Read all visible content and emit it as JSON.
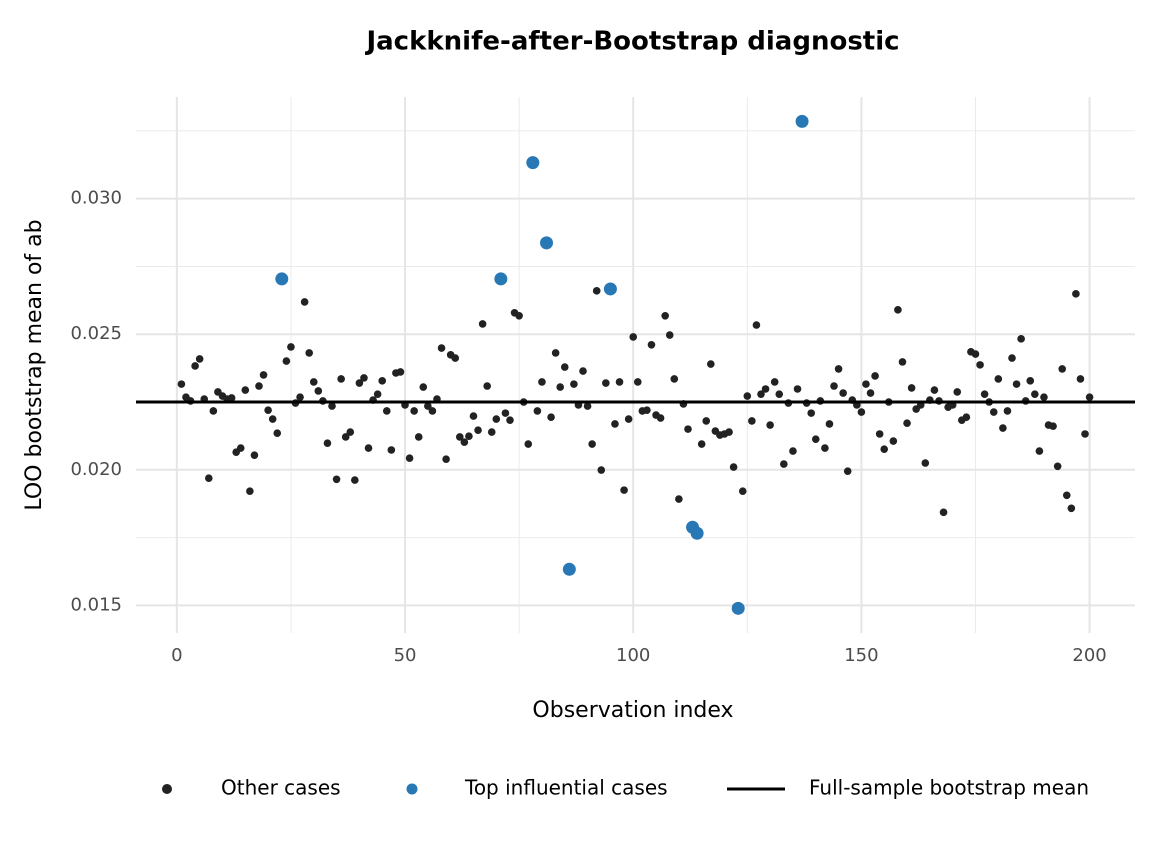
{
  "chart_data": {
    "type": "scatter",
    "title": "Jackknife-after-Bootstrap diagnostic",
    "x_label": "Observation index",
    "y_label": "LOO bootstrap mean of ab",
    "xlim": [
      -8.95,
      209.95
    ],
    "ylim": [
      0.01398,
      0.03375
    ],
    "xticks": [
      0,
      50,
      100,
      150,
      200
    ],
    "yticks": [
      0.015,
      {
        "value": 0.02,
        "label": "0.020"
      },
      0.025,
      {
        "value": 0.03,
        "label": "0.030"
      }
    ],
    "x_minor_ticks": [
      25,
      75,
      125,
      175
    ],
    "y_minor_ticks": [
      0.0175,
      0.0225,
      0.0275,
      0.0325
    ],
    "grid": true,
    "legend": "bottom",
    "series": [
      {
        "name": "Other cases",
        "color": "#222222",
        "x": [
          1,
          2,
          3,
          4,
          5,
          6,
          7,
          8,
          9,
          10,
          11,
          12,
          13,
          14,
          15,
          16,
          17,
          18,
          19,
          20,
          21,
          22,
          24,
          25,
          26,
          27,
          28,
          29,
          30,
          31,
          32,
          33,
          34,
          35,
          36,
          37,
          38,
          39,
          40,
          41,
          42,
          43,
          44,
          45,
          46,
          47,
          48,
          49,
          50,
          51,
          52,
          53,
          54,
          55,
          56,
          57,
          58,
          59,
          60,
          61,
          62,
          63,
          64,
          65,
          66,
          67,
          68,
          69,
          70,
          72,
          73,
          74,
          75,
          76,
          77,
          79,
          80,
          82,
          83,
          84,
          85,
          87,
          88,
          89,
          90,
          91,
          92,
          93,
          94,
          96,
          97,
          98,
          99,
          100,
          101,
          102,
          103,
          104,
          105,
          106,
          107,
          108,
          109,
          110,
          111,
          112,
          115,
          116,
          117,
          118,
          119,
          120,
          121,
          122,
          124,
          125,
          126,
          127,
          128,
          129,
          130,
          131,
          132,
          133,
          134,
          135,
          136,
          138,
          139,
          140,
          141,
          142,
          143,
          144,
          145,
          146,
          147,
          148,
          149,
          150,
          151,
          152,
          153,
          154,
          155,
          156,
          157,
          158,
          159,
          160,
          161,
          162,
          163,
          164,
          165,
          166,
          167,
          168,
          169,
          170,
          171,
          172,
          173,
          174,
          175,
          176,
          177,
          178,
          179,
          180,
          181,
          182,
          183,
          184,
          185,
          186,
          187,
          188,
          189,
          190,
          191,
          192,
          193,
          194,
          195,
          196,
          197,
          198,
          199,
          200
        ],
        "values": [
          0.02316,
          0.02268,
          0.02254,
          0.02383,
          0.02409,
          0.02261,
          0.01969,
          0.02217,
          0.02287,
          0.02272,
          0.02261,
          0.02265,
          0.02065,
          0.0208,
          0.02294,
          0.01921,
          0.02054,
          0.02309,
          0.0235,
          0.0222,
          0.02187,
          0.02135,
          0.02401,
          0.02453,
          0.02246,
          0.02268,
          0.02619,
          0.02431,
          0.02324,
          0.02291,
          0.02254,
          0.02098,
          0.02235,
          0.01965,
          0.02335,
          0.02121,
          0.02139,
          0.01962,
          0.0232,
          0.02339,
          0.0208,
          0.02257,
          0.02279,
          0.02328,
          0.02217,
          0.02073,
          0.02357,
          0.02361,
          0.02239,
          0.02043,
          0.02217,
          0.02121,
          0.02305,
          0.02235,
          0.02217,
          0.02261,
          0.02449,
          0.02039,
          0.02424,
          0.02412,
          0.02121,
          0.02102,
          0.02124,
          0.02198,
          0.02146,
          0.02538,
          0.02309,
          0.02139,
          0.02187,
          0.02209,
          0.02183,
          0.02579,
          0.02568,
          0.0225,
          0.02095,
          0.02217,
          0.02324,
          0.02194,
          0.02431,
          0.02305,
          0.02379,
          0.02316,
          0.02239,
          0.02364,
          0.02235,
          0.02095,
          0.0266,
          0.01999,
          0.0232,
          0.02169,
          0.02324,
          0.01925,
          0.02187,
          0.0249,
          0.02324,
          0.02217,
          0.0222,
          0.02461,
          0.02202,
          0.02191,
          0.02568,
          0.02497,
          0.02335,
          0.01892,
          0.02243,
          0.0215,
          0.02095,
          0.0218,
          0.0239,
          0.02143,
          0.02128,
          0.02132,
          0.02139,
          0.0201,
          0.01921,
          0.02272,
          0.0218,
          0.02534,
          0.02279,
          0.02298,
          0.02165,
          0.02324,
          0.02279,
          0.02021,
          0.02246,
          0.02069,
          0.02298,
          0.02246,
          0.02209,
          0.02113,
          0.02254,
          0.0208,
          0.02169,
          0.02309,
          0.02372,
          0.02283,
          0.01995,
          0.02257,
          0.02239,
          0.02213,
          0.02316,
          0.02283,
          0.02346,
          0.02132,
          0.02076,
          0.0225,
          0.02106,
          0.0259,
          0.02398,
          0.02172,
          0.02302,
          0.02224,
          0.02239,
          0.02025,
          0.02257,
          0.02294,
          0.02254,
          0.01843,
          0.02231,
          0.02239,
          0.02287,
          0.02183,
          0.02194,
          0.02435,
          0.02427,
          0.02387,
          0.02279,
          0.0225,
          0.02213,
          0.02335,
          0.02154,
          0.02217,
          0.02412,
          0.02316,
          0.02483,
          0.02254,
          0.02328,
          0.02279,
          0.02069,
          0.02268,
          0.02165,
          0.02161,
          0.02013,
          0.02372,
          0.01906,
          0.01858,
          0.02649,
          0.02335,
          0.02132,
          0.02268
        ]
      },
      {
        "name": "Top influential cases",
        "color": "#2878b5",
        "x": [
          23,
          71,
          78,
          81,
          86,
          95,
          113,
          114,
          123,
          137
        ],
        "values": [
          0.02704,
          0.02704,
          0.03133,
          0.02837,
          0.01633,
          0.02667,
          0.01788,
          0.01766,
          0.01489,
          0.03285
        ]
      }
    ],
    "hline": {
      "name": "Full-sample bootstrap mean",
      "value": 0.0225,
      "color": "#000000"
    }
  }
}
